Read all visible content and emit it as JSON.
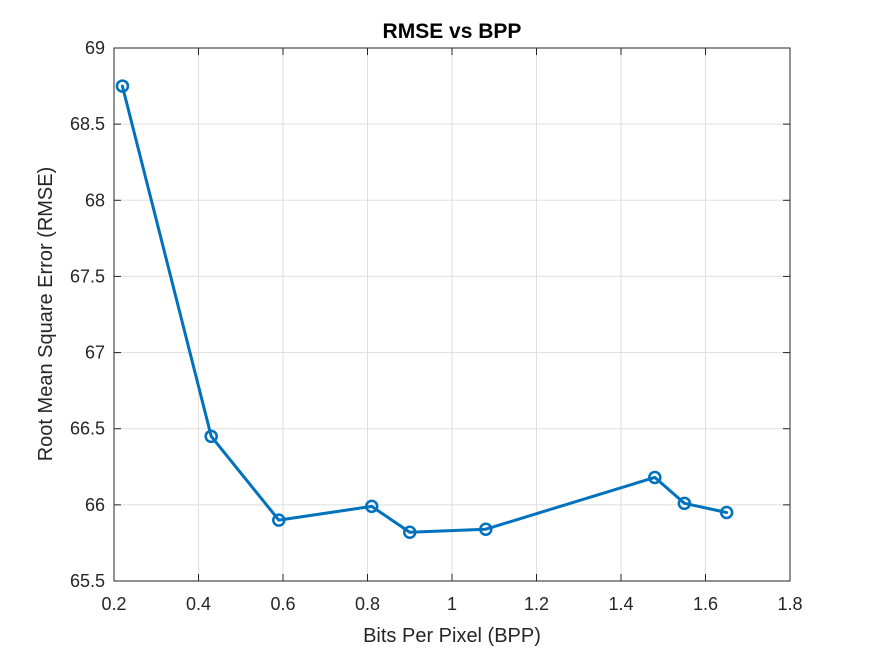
{
  "chart_data": {
    "type": "line",
    "title": "RMSE vs BPP",
    "xlabel": "Bits Per Pixel (BPP)",
    "ylabel": "Root Mean Square Error (RMSE)",
    "xlim": [
      0.2,
      1.8
    ],
    "ylim": [
      65.5,
      69
    ],
    "xticks": [
      0.2,
      0.4,
      0.6,
      0.8,
      1,
      1.2,
      1.4,
      1.6,
      1.8
    ],
    "xtick_labels": [
      "0.2",
      "0.4",
      "0.6",
      "0.8",
      "1",
      "1.2",
      "1.4",
      "1.6",
      "1.8"
    ],
    "yticks": [
      65.5,
      66,
      66.5,
      67,
      67.5,
      68,
      68.5,
      69
    ],
    "ytick_labels": [
      "65.5",
      "66",
      "66.5",
      "67",
      "67.5",
      "68",
      "68.5",
      "69"
    ],
    "grid": true,
    "series": [
      {
        "color": "#0072bd",
        "marker": "circle",
        "x": [
          0.22,
          0.43,
          0.59,
          0.81,
          0.9,
          1.08,
          1.48,
          1.55,
          1.65
        ],
        "y": [
          68.75,
          66.45,
          65.9,
          65.99,
          65.82,
          65.84,
          66.18,
          66.01,
          65.95
        ]
      }
    ]
  }
}
